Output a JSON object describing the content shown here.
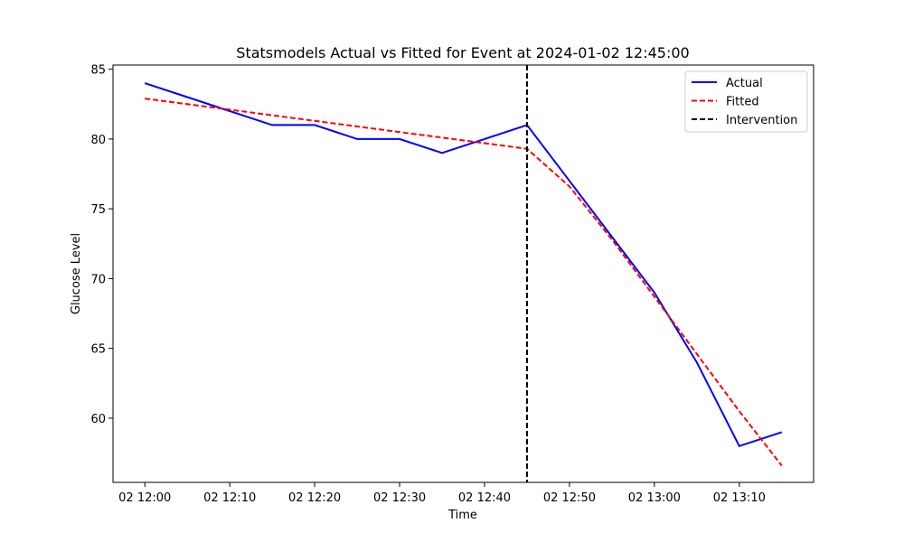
{
  "chart_data": {
    "type": "line",
    "title": "Statsmodels Actual vs Fitted for Event at 2024-01-02 12:45:00",
    "xlabel": "Time",
    "ylabel": "Glucose Level",
    "x": [
      "2024-01-02 12:00",
      "2024-01-02 12:05",
      "2024-01-02 12:10",
      "2024-01-02 12:15",
      "2024-01-02 12:20",
      "2024-01-02 12:25",
      "2024-01-02 12:30",
      "2024-01-02 12:35",
      "2024-01-02 12:40",
      "2024-01-02 12:45",
      "2024-01-02 12:50",
      "2024-01-02 12:55",
      "2024-01-02 13:00",
      "2024-01-02 13:05",
      "2024-01-02 13:10",
      "2024-01-02 13:15"
    ],
    "xticks": [
      "02 12:00",
      "02 12:10",
      "02 12:20",
      "02 12:30",
      "02 12:40",
      "02 12:50",
      "02 13:00",
      "02 13:10"
    ],
    "xtick_times": [
      "2024-01-02 12:00",
      "2024-01-02 12:10",
      "2024-01-02 12:20",
      "2024-01-02 12:30",
      "2024-01-02 12:40",
      "2024-01-02 12:50",
      "2024-01-02 13:00",
      "2024-01-02 13:10"
    ],
    "xlim": [
      "2024-01-02 11:56:15",
      "2024-01-02 13:18:45"
    ],
    "yticks": [
      60,
      65,
      70,
      75,
      80,
      85
    ],
    "ylim": [
      55.4,
      85.3
    ],
    "series": [
      {
        "name": "Actual",
        "color": "#0000ff",
        "style": "solid",
        "values": [
          84,
          83,
          82,
          81,
          81,
          80,
          80,
          79,
          80,
          81,
          77,
          73,
          69,
          64,
          58,
          59
        ]
      },
      {
        "name": "Fitted",
        "color": "#ff0000",
        "style": "dashed",
        "values": [
          82.9,
          82.5,
          82.1,
          81.7,
          81.3,
          80.9,
          80.5,
          80.1,
          79.7,
          79.3,
          76.6,
          72.8,
          68.7,
          64.6,
          60.5,
          56.6
        ]
      }
    ],
    "intervention": {
      "name": "Intervention",
      "x": "2024-01-02 12:45",
      "color": "#000000",
      "style": "dashed"
    },
    "legend_position": "top-right",
    "grid": false
  }
}
